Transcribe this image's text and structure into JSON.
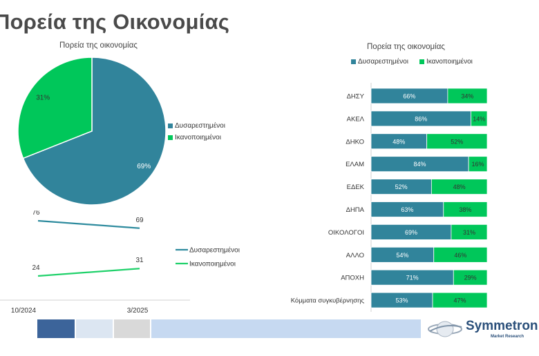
{
  "page": {
    "title": "Πορεία της Οικονομίας"
  },
  "colors": {
    "dissatisfied": "#31849B",
    "satisfied": "#00C75A",
    "line_dissatisfied": "#2E8B9E",
    "line_satisfied": "#1FD16A"
  },
  "brand": {
    "name": "Symmetron",
    "tagline": "Market Research"
  },
  "chart_data": [
    {
      "type": "pie",
      "title": "Πορεία της οικονομίας",
      "labels": [
        "Δυσαρεστημένοι",
        "Ικανοποιημένοι"
      ],
      "values": [
        69,
        31
      ],
      "data_labels": [
        "69%",
        "31%"
      ],
      "legend": "right"
    },
    {
      "type": "line",
      "title": "",
      "x": [
        "10/2024",
        "3/2025"
      ],
      "series": [
        {
          "name": "Δυσαρεστημένοι",
          "values": [
            76,
            69
          ]
        },
        {
          "name": "Ικανοποιημένοι",
          "values": [
            24,
            31
          ]
        }
      ],
      "legend": "right"
    },
    {
      "type": "bar",
      "orientation": "horizontal",
      "stacked": true,
      "title": "Πορεία της οικονομίας",
      "legend": "top",
      "categories": [
        "ΔΗΣΥ",
        "ΑΚΕΛ",
        "ΔΗΚΟ",
        "ΕΛΑΜ",
        "ΕΔΕΚ",
        "ΔΗΠΑ",
        "ΟΙΚΟΛΟΓΟΙ",
        "ΑΛΛΟ",
        "ΑΠΟΧΗ",
        "Κόμματα συγκυβέρνησης"
      ],
      "series": [
        {
          "name": "Δυσαρεστημένοι",
          "values": [
            66,
            86,
            48,
            84,
            52,
            63,
            69,
            54,
            71,
            53
          ]
        },
        {
          "name": "Ικανοποιημένοι",
          "values": [
            34,
            14,
            52,
            16,
            48,
            38,
            31,
            46,
            29,
            47
          ]
        }
      ]
    }
  ]
}
